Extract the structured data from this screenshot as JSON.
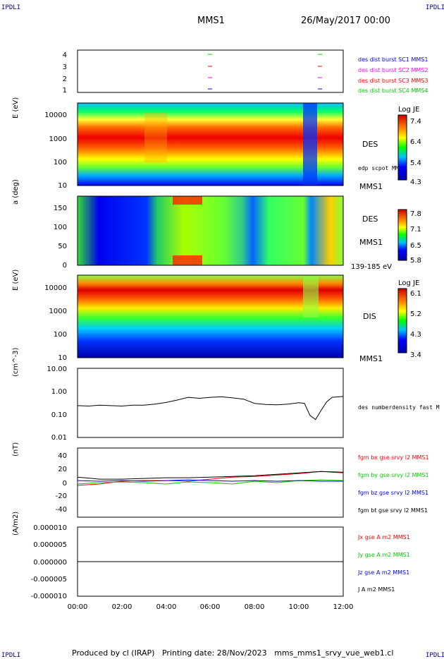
{
  "header": {
    "corner_label": "IPDLI",
    "mission": "MMS1",
    "date": "26/May/2017 00:00"
  },
  "footer": {
    "produced_by": "Produced by cl (IRAP)",
    "printing_date": "Printing date: 28/Nov/2023",
    "filename": "mms_mms1_srvy_vue_web1.cl"
  },
  "colors": {
    "mms1": "#0000ff",
    "mms2": "#ff00ff",
    "mms3": "#ff0000",
    "mms4": "#00cc00",
    "bx": "#ff0000",
    "by": "#00cc00",
    "bz": "#0000ff",
    "bt": "#000000"
  },
  "panels": {
    "burst": {
      "ticks": [
        "1",
        "2",
        "3",
        "4"
      ],
      "legend": [
        "des dist burst SC1 MMS1",
        "des dist burst SC2 MMS2",
        "des dist burst SC3 MMS3",
        "des dist burst SC4 MMS4"
      ]
    },
    "des_energy": {
      "ylabel": "E (eV)",
      "ticks": [
        "10",
        "100",
        "1000",
        "10000"
      ],
      "label": "DES",
      "overlay_label": "edp scpot MMS1",
      "sc_label": "MMS1",
      "colorbar_title": "Log JE",
      "colorbar_ticks": [
        "7.4",
        "6.4",
        "5.4",
        "4.3"
      ]
    },
    "des_pitch": {
      "ylabel": "a (deg)",
      "ticks": [
        "0",
        "50",
        "100",
        "150"
      ],
      "label": "DES",
      "sc_label": "MMS1",
      "energy_range": "139-185 eV",
      "colorbar_ticks": [
        "7.8",
        "7.1",
        "6.5",
        "5.8"
      ]
    },
    "dis_energy": {
      "ylabel": "E (eV)",
      "ticks": [
        "10",
        "100",
        "1000",
        "10000"
      ],
      "label": "DIS",
      "sc_label": "MMS1",
      "colorbar_title": "Log JE",
      "colorbar_ticks": [
        "6.1",
        "5.2",
        "4.3",
        "3.4"
      ]
    },
    "density": {
      "ylabel": "(cm^-3)",
      "ticks": [
        "0.01",
        "0.10",
        "1.00",
        "10.00"
      ],
      "legend": "des numberdensity fast M"
    },
    "field": {
      "ylabel": "(nT)",
      "ticks": [
        "-40",
        "-20",
        "0",
        "20",
        "40"
      ],
      "legend": [
        "fgm bx gse srvy l2 MMS1",
        "fgm by gse srvy l2 MMS1",
        "fgm bz gse srvy l2 MMS1",
        "fgm bt gse srvy l2 MMS1"
      ]
    },
    "current": {
      "ylabel": "(A/m2)",
      "ticks": [
        "-0.000010",
        "-0.000005",
        "0.000000",
        "0.000005",
        "0.000010"
      ],
      "legend": [
        "Jx gse A m2 MMS1",
        "Jy gse A m2 MMS1",
        "Jz gse A m2 MMS1",
        "J A m2 MMS1"
      ]
    }
  },
  "time_axis": [
    "00:00",
    "02:00",
    "04:00",
    "06:00",
    "08:00",
    "10:00",
    "12:00"
  ],
  "chart_data": [
    {
      "type": "line",
      "title": "",
      "ylabel": "(cm^-3)",
      "yscale": "log",
      "ylim": [
        0.01,
        10
      ],
      "x": [
        "00:00",
        "00:30",
        "01:00",
        "01:30",
        "02:00",
        "02:30",
        "03:00",
        "03:30",
        "04:00",
        "04:30",
        "05:00",
        "05:30",
        "06:00",
        "06:30",
        "07:00",
        "07:30",
        "08:00",
        "08:30",
        "09:00",
        "09:30",
        "10:00",
        "10:15",
        "10:30",
        "10:45",
        "11:00",
        "11:15",
        "11:30",
        "12:00"
      ],
      "series": [
        {
          "name": "des numberdensity fast M",
          "values": [
            0.24,
            0.23,
            0.25,
            0.24,
            0.23,
            0.25,
            0.25,
            0.28,
            0.33,
            0.42,
            0.55,
            0.5,
            0.55,
            0.58,
            0.52,
            0.46,
            0.3,
            0.27,
            0.26,
            0.28,
            0.32,
            0.3,
            0.09,
            0.06,
            0.15,
            0.35,
            0.55,
            0.6
          ]
        }
      ]
    },
    {
      "type": "line",
      "title": "",
      "ylabel": "(nT)",
      "ylim": [
        -50,
        50
      ],
      "x": [
        "00:00",
        "01:00",
        "02:00",
        "03:00",
        "04:00",
        "05:00",
        "06:00",
        "07:00",
        "08:00",
        "09:00",
        "10:00",
        "11:00",
        "12:00"
      ],
      "series": [
        {
          "name": "fgm bx gse srvy l2 MMS1",
          "values": [
            -4,
            -2,
            2,
            3,
            3,
            2,
            5,
            8,
            9,
            11,
            13,
            16,
            14
          ]
        },
        {
          "name": "fgm by gse srvy l2 MMS1",
          "values": [
            -2,
            0,
            1,
            0,
            -2,
            1,
            0,
            -2,
            2,
            0,
            3,
            4,
            3
          ]
        },
        {
          "name": "fgm bz gse srvy l2 MMS1",
          "values": [
            3,
            2,
            3,
            2,
            3,
            4,
            3,
            2,
            3,
            2,
            3,
            2,
            2
          ]
        },
        {
          "name": "fgm bt gse srvy l2 MMS1",
          "values": [
            8,
            5,
            5,
            6,
            7,
            7,
            8,
            9,
            10,
            12,
            14,
            16,
            15
          ]
        }
      ]
    },
    {
      "type": "line",
      "title": "",
      "ylabel": "(A/m2)",
      "ylim": [
        -1e-05,
        1e-05
      ],
      "x": [
        "00:00",
        "12:00"
      ],
      "series": [
        {
          "name": "J A m2 MMS1",
          "values": [
            0,
            0
          ]
        }
      ]
    }
  ]
}
